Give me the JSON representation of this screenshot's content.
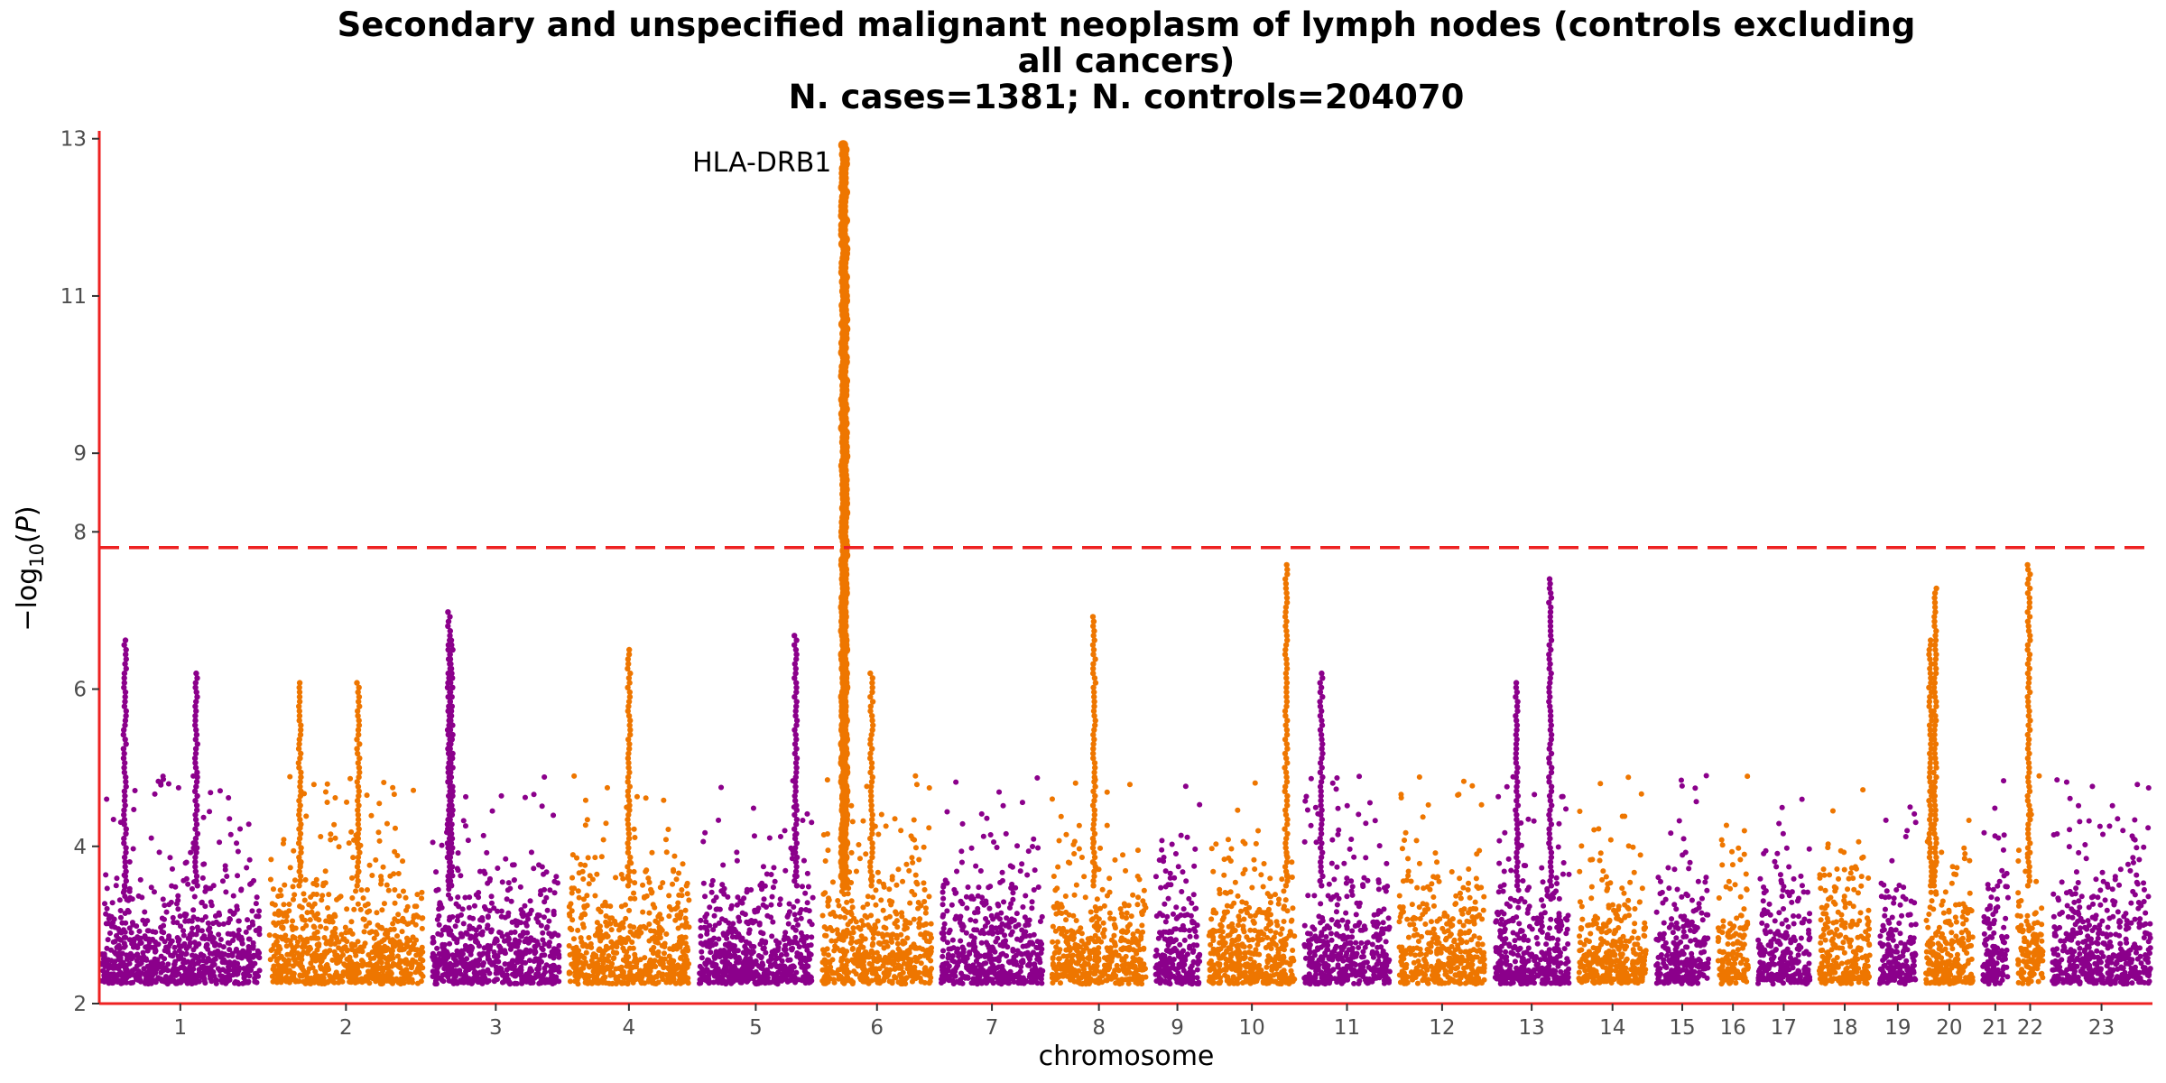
{
  "chart_data": {
    "type": "scatter",
    "subtype": "manhattan",
    "title_lines": [
      "Secondary and unspecified malignant neoplasm of lymph nodes (controls excluding",
      "all cancers)",
      "N. cases=1381; N. controls=204070"
    ],
    "xlabel": "chromosome",
    "ylabel": "−log10(P)",
    "ylim": [
      2,
      13.1
    ],
    "yticks": [
      2,
      4,
      6,
      8,
      9,
      11,
      13
    ],
    "significance_threshold": 7.8,
    "colors": {
      "odd": "#8B008B",
      "even": "#EE7600",
      "threshold": "#EE2222",
      "axis": "#EE2222"
    },
    "chromosomes": [
      {
        "label": "1",
        "len": 1.0
      },
      {
        "label": "2",
        "len": 0.97
      },
      {
        "label": "3",
        "len": 0.8
      },
      {
        "label": "4",
        "len": 0.76
      },
      {
        "label": "5",
        "len": 0.72
      },
      {
        "label": "6",
        "len": 0.69
      },
      {
        "label": "7",
        "len": 0.64
      },
      {
        "label": "8",
        "len": 0.59
      },
      {
        "label": "9",
        "len": 0.28
      },
      {
        "label": "10",
        "len": 0.54
      },
      {
        "label": "11",
        "len": 0.54
      },
      {
        "label": "12",
        "len": 0.54
      },
      {
        "label": "13",
        "len": 0.47
      },
      {
        "label": "14",
        "len": 0.43
      },
      {
        "label": "15",
        "len": 0.33
      },
      {
        "label": "16",
        "len": 0.19
      },
      {
        "label": "17",
        "len": 0.33
      },
      {
        "label": "18",
        "len": 0.32
      },
      {
        "label": "19",
        "len": 0.23
      },
      {
        "label": "20",
        "len": 0.3
      },
      {
        "label": "21",
        "len": 0.16
      },
      {
        "label": "22",
        "len": 0.16
      },
      {
        "label": "23",
        "len": 0.62
      }
    ],
    "peaks": [
      {
        "chr": "1",
        "pos": 0.15,
        "p": 6.6
      },
      {
        "chr": "1",
        "pos": 0.6,
        "p": 6.2
      },
      {
        "chr": "2",
        "pos": 0.2,
        "p": 6.1
      },
      {
        "chr": "2",
        "pos": 0.58,
        "p": 6.1
      },
      {
        "chr": "3",
        "pos": 0.15,
        "p": 6.6
      },
      {
        "chr": "3",
        "pos": 0.13,
        "p": 7.0
      },
      {
        "chr": "4",
        "pos": 0.5,
        "p": 6.5
      },
      {
        "chr": "5",
        "pos": 0.85,
        "p": 6.7
      },
      {
        "chr": "6",
        "pos": 0.2,
        "p": 12.9
      },
      {
        "chr": "6",
        "pos": 0.45,
        "p": 6.2
      },
      {
        "chr": "8",
        "pos": 0.45,
        "p": 6.9
      },
      {
        "chr": "10",
        "pos": 0.9,
        "p": 7.6
      },
      {
        "chr": "11",
        "pos": 0.2,
        "p": 6.2
      },
      {
        "chr": "13",
        "pos": 0.3,
        "p": 6.1
      },
      {
        "chr": "13",
        "pos": 0.75,
        "p": 7.4
      },
      {
        "chr": "20",
        "pos": 0.2,
        "p": 7.3
      },
      {
        "chr": "20",
        "pos": 0.1,
        "p": 6.6
      },
      {
        "chr": "22",
        "pos": 0.45,
        "p": 7.6
      }
    ],
    "annotations": [
      {
        "text": "HLA-DRB1",
        "chr": "6",
        "p": 12.7
      }
    ]
  }
}
